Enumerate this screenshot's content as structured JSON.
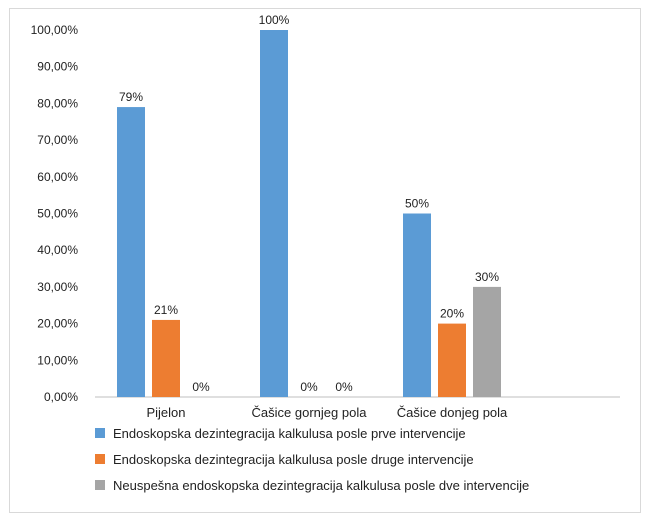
{
  "chart_data": {
    "type": "bar",
    "categories": [
      "Pijelon",
      "Čašice gornjeg pola",
      "Čašice donjeg pola"
    ],
    "series": [
      {
        "name": "Endoskopska dezintegracija kalkulusa posle prve intervencije",
        "color": "#5b9bd5",
        "values": [
          79,
          100,
          50
        ],
        "labels": [
          "79%",
          "100%",
          "50%"
        ]
      },
      {
        "name": "Endoskopska dezintegracija kalkulusa posle druge intervencije",
        "color": "#ed7d31",
        "values": [
          21,
          0,
          20
        ],
        "labels": [
          "21%",
          "0%",
          "20%"
        ]
      },
      {
        "name": "Neuspešna endoskopska dezintegracija kalkulusa posle dve intervencije",
        "color": "#a5a5a5",
        "values": [
          0,
          0,
          30
        ],
        "labels": [
          "0%",
          "0%",
          "30%"
        ]
      }
    ],
    "yticks": [
      "0,00%",
      "10,00%",
      "20,00%",
      "30,00%",
      "40,00%",
      "50,00%",
      "60,00%",
      "70,00%",
      "80,00%",
      "90,00%",
      "100,00%"
    ],
    "ylim": [
      0,
      100
    ],
    "grid": false,
    "legend_position": "bottom"
  }
}
